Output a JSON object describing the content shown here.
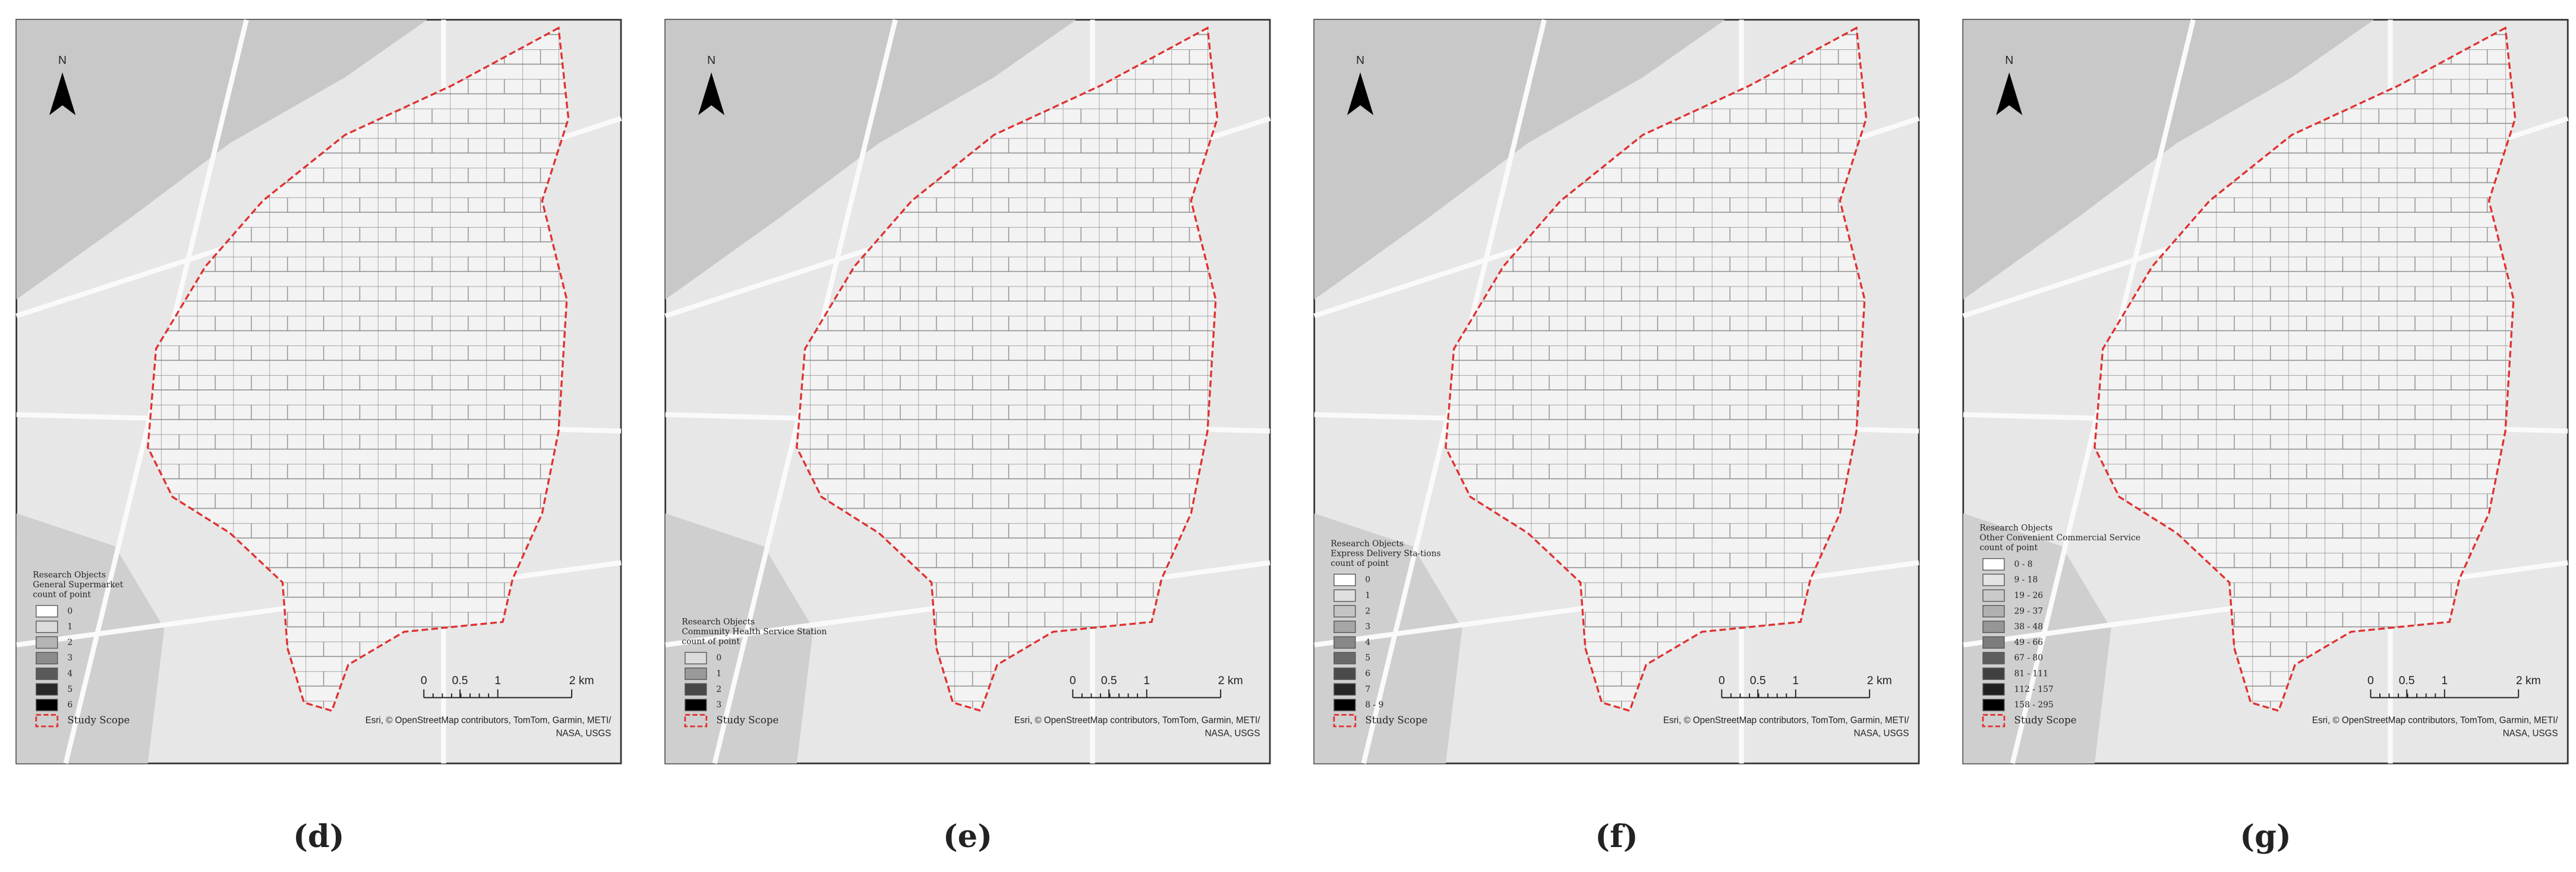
{
  "panels": [
    {
      "label": "(d)",
      "north": "N",
      "legend": {
        "heading": "Research Objects",
        "subject": "General Supermarket",
        "measure": "count of point",
        "classes": [
          {
            "label": "0",
            "color": "#ffffff"
          },
          {
            "label": "1",
            "color": "#dcdcdc"
          },
          {
            "label": "2",
            "color": "#b4b4b4"
          },
          {
            "label": "3",
            "color": "#8c8c8c"
          },
          {
            "label": "4",
            "color": "#5a5a5a"
          },
          {
            "label": "5",
            "color": "#282828"
          },
          {
            "label": "6",
            "color": "#000000"
          }
        ],
        "boundary": "Study Scope"
      },
      "scale": [
        "0",
        "0.5",
        "1",
        "2 km"
      ],
      "attribution": [
        "Esri, © OpenStreetMap contributors, TomTom, Garmin, METI/",
        "NASA, USGS"
      ]
    },
    {
      "label": "(e)",
      "north": "N",
      "legend": {
        "heading": "Research Objects",
        "subject": "Community Health Service Station",
        "measure": "count of point",
        "classes": [
          {
            "label": "0",
            "color": "#dcdcdc"
          },
          {
            "label": "1",
            "color": "#9a9a9a"
          },
          {
            "label": "2",
            "color": "#484848"
          },
          {
            "label": "3",
            "color": "#000000"
          }
        ],
        "boundary": "Study Scope"
      },
      "scale": [
        "0",
        "0.5",
        "1",
        "2 km"
      ],
      "attribution": [
        "Esri, © OpenStreetMap contributors, TomTom, Garmin, METI/",
        "NASA, USGS"
      ]
    },
    {
      "label": "(f)",
      "north": "N",
      "legend": {
        "heading": "Research Objects",
        "subject": "Express Delivery Sta-tions",
        "measure": "count of point",
        "classes": [
          {
            "label": "0",
            "color": "#ffffff"
          },
          {
            "label": "1",
            "color": "#e0e0e0"
          },
          {
            "label": "2",
            "color": "#c4c4c4"
          },
          {
            "label": "3",
            "color": "#a6a6a6"
          },
          {
            "label": "4",
            "color": "#888888"
          },
          {
            "label": "5",
            "color": "#6a6a6a"
          },
          {
            "label": "6",
            "color": "#4a4a4a"
          },
          {
            "label": "7",
            "color": "#262626"
          },
          {
            "label": "8 - 9",
            "color": "#000000"
          }
        ],
        "boundary": "Study Scope"
      },
      "scale": [
        "0",
        "0.5",
        "1",
        "2 km"
      ],
      "attribution": [
        "Esri, © OpenStreetMap contributors, TomTom, Garmin, METI/",
        "NASA, USGS"
      ]
    },
    {
      "label": "(g)",
      "north": "N",
      "legend": {
        "heading": "Research Objects",
        "subject": "Other Convenient Commercial Service",
        "measure": "count of point",
        "classes": [
          {
            "label": "0 - 8",
            "color": "#ffffff"
          },
          {
            "label": "9 - 18",
            "color": "#e4e4e4"
          },
          {
            "label": "19 - 26",
            "color": "#cacaca"
          },
          {
            "label": "29 - 37",
            "color": "#b0b0b0"
          },
          {
            "label": "38 - 48",
            "color": "#969696"
          },
          {
            "label": "49 - 66",
            "color": "#7c7c7c"
          },
          {
            "label": "67 - 80",
            "color": "#5e5e5e"
          },
          {
            "label": "81 - 111",
            "color": "#404040"
          },
          {
            "label": "112 - 157",
            "color": "#202020"
          },
          {
            "label": "158 - 295",
            "color": "#000000"
          }
        ],
        "boundary": "Study Scope"
      },
      "scale": [
        "0",
        "0.5",
        "1",
        "2 km"
      ],
      "attribution": [
        "Esri, © OpenStreetMap contributors, TomTom, Garmin, METI/",
        "NASA, USGS"
      ]
    }
  ]
}
